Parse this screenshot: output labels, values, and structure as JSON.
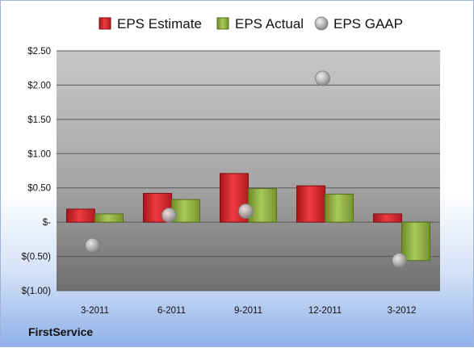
{
  "brand": "FirstService",
  "chart_data": {
    "type": "bar",
    "categories": [
      "3-2011",
      "6-2011",
      "9-2011",
      "12-2011",
      "3-2012"
    ],
    "series": [
      {
        "name": "EPS Estimate",
        "type": "bar",
        "color": "#d62128",
        "values": [
          0.19,
          0.42,
          0.71,
          0.53,
          0.12
        ]
      },
      {
        "name": "EPS Actual",
        "type": "bar",
        "color": "#8fb03a",
        "values": [
          0.12,
          0.33,
          0.49,
          0.41,
          -0.56
        ]
      },
      {
        "name": "EPS GAAP",
        "type": "scatter",
        "color": "#a8a8a8",
        "values": [
          -0.34,
          0.1,
          0.16,
          2.1,
          -0.56
        ]
      }
    ],
    "ylim": [
      -1.0,
      2.5
    ],
    "yticks": [
      2.5,
      2.0,
      1.5,
      1.0,
      0.5,
      0,
      -0.5,
      -1.0
    ],
    "ytick_labels": [
      "$2.50",
      "$2.00",
      "$1.50",
      "$1.00",
      "$0.50",
      "$-",
      "$(0.50)",
      "$(1.00)"
    ],
    "legend_position": "top",
    "grid": true
  }
}
